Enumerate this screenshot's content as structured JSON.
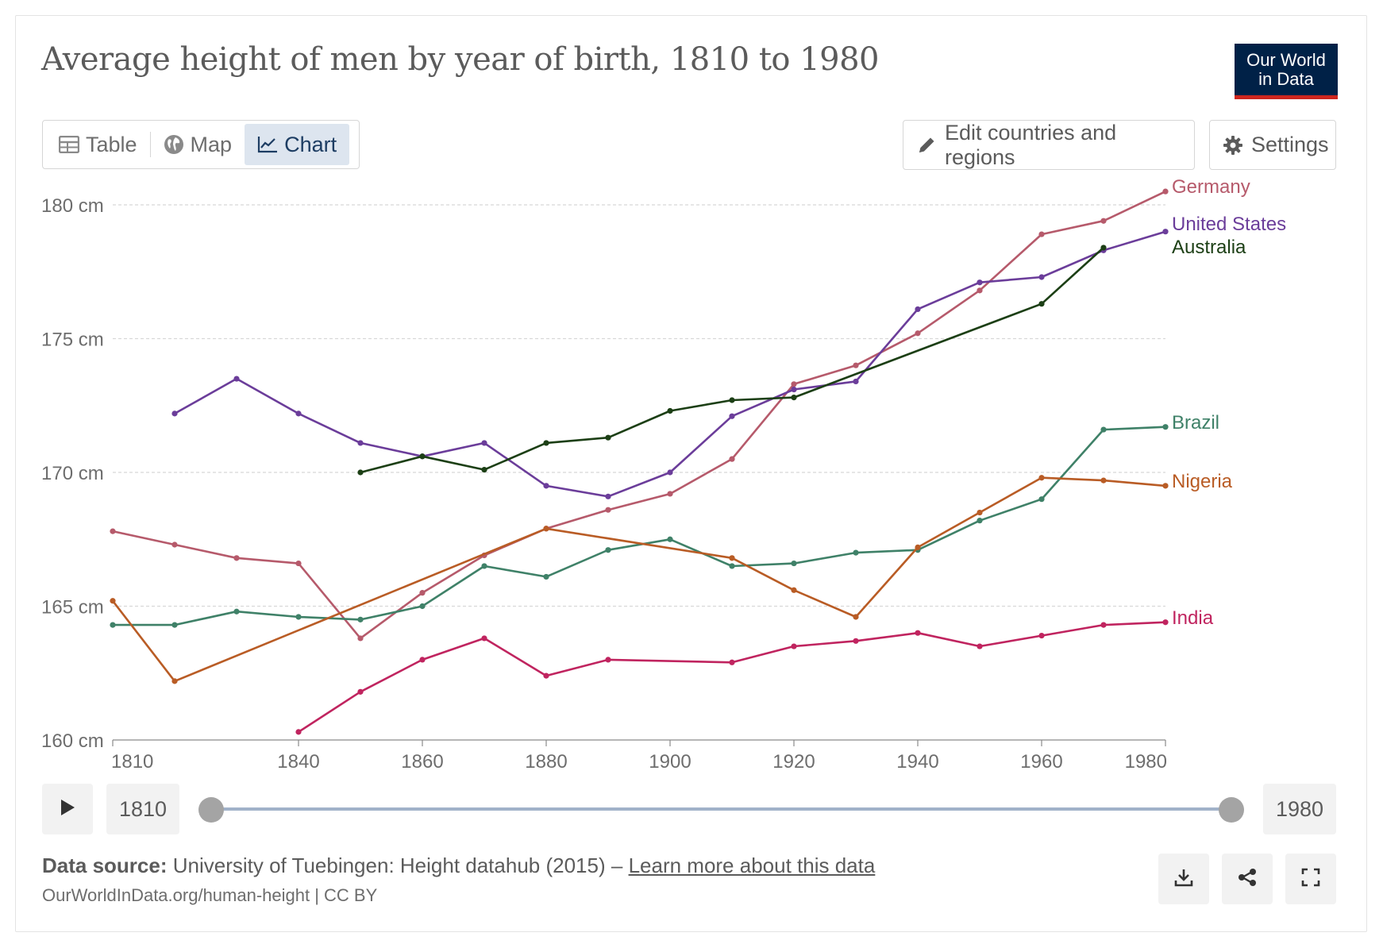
{
  "title": "Average height of men by year of birth, 1810 to 1980",
  "logo": {
    "line1": "Our World",
    "line2": "in Data"
  },
  "tabs": [
    {
      "label": "Table",
      "icon": "table-icon",
      "active": false
    },
    {
      "label": "Map",
      "icon": "globe-icon",
      "active": false
    },
    {
      "label": "Chart",
      "icon": "line-chart-icon",
      "active": true
    }
  ],
  "controls": {
    "edit_label": "Edit countries and regions",
    "settings_label": "Settings"
  },
  "timeline": {
    "start": "1810",
    "end": "1980"
  },
  "footer": {
    "source_label": "Data source:",
    "source_text": "University of Tuebingen: Height datahub (2015) –",
    "learn_more": "Learn more about this data",
    "url": "OurWorldInData.org/human-height | CC BY"
  },
  "colors": {
    "Germany": "#b65a6b",
    "United States": "#6b3d9a",
    "Australia": "#1c3f15",
    "Brazil": "#3f8168",
    "Nigeria": "#b95c25",
    "India": "#c0245f",
    "grid": "#d8d8d8",
    "axis_text": "#6d6d6d"
  },
  "chart_data": {
    "type": "line",
    "xlim": [
      1810,
      1980
    ],
    "ylim": [
      160,
      180
    ],
    "x_ticks": [
      "1810",
      "1840",
      "1860",
      "1880",
      "1900",
      "1920",
      "1940",
      "1960",
      "1980"
    ],
    "y_ticks": [
      "160 cm",
      "165 cm",
      "170 cm",
      "175 cm",
      "180 cm"
    ],
    "grid": "horizontal dashed",
    "legend": "line-end labels",
    "series": [
      {
        "name": "Germany",
        "points": [
          [
            1810,
            167.8
          ],
          [
            1820,
            167.3
          ],
          [
            1830,
            166.8
          ],
          [
            1840,
            166.6
          ],
          [
            1850,
            163.8
          ],
          [
            1860,
            165.5
          ],
          [
            1870,
            166.9
          ],
          [
            1880,
            167.9
          ],
          [
            1890,
            168.6
          ],
          [
            1900,
            169.2
          ],
          [
            1910,
            170.5
          ],
          [
            1920,
            173.3
          ],
          [
            1930,
            174.0
          ],
          [
            1940,
            175.2
          ],
          [
            1950,
            176.8
          ],
          [
            1960,
            178.9
          ],
          [
            1970,
            179.4
          ],
          [
            1980,
            180.5
          ]
        ]
      },
      {
        "name": "United States",
        "points": [
          [
            1820,
            172.2
          ],
          [
            1830,
            173.5
          ],
          [
            1840,
            172.2
          ],
          [
            1850,
            171.1
          ],
          [
            1860,
            170.6
          ],
          [
            1870,
            171.1
          ],
          [
            1880,
            169.5
          ],
          [
            1890,
            169.1
          ],
          [
            1900,
            170.0
          ],
          [
            1910,
            172.1
          ],
          [
            1920,
            173.1
          ],
          [
            1930,
            173.4
          ],
          [
            1940,
            176.1
          ],
          [
            1950,
            177.1
          ],
          [
            1960,
            177.3
          ],
          [
            1970,
            178.3
          ],
          [
            1980,
            179.0
          ]
        ]
      },
      {
        "name": "Australia",
        "points": [
          [
            1850,
            170.0
          ],
          [
            1860,
            170.6
          ],
          [
            1870,
            170.1
          ],
          [
            1880,
            171.1
          ],
          [
            1890,
            171.3
          ],
          [
            1900,
            172.3
          ],
          [
            1910,
            172.7
          ],
          [
            1920,
            172.8
          ],
          [
            1960,
            176.3
          ],
          [
            1970,
            178.4
          ]
        ]
      },
      {
        "name": "Brazil",
        "points": [
          [
            1810,
            164.3
          ],
          [
            1820,
            164.3
          ],
          [
            1830,
            164.8
          ],
          [
            1840,
            164.6
          ],
          [
            1850,
            164.5
          ],
          [
            1860,
            165.0
          ],
          [
            1870,
            166.5
          ],
          [
            1880,
            166.1
          ],
          [
            1890,
            167.1
          ],
          [
            1900,
            167.5
          ],
          [
            1910,
            166.5
          ],
          [
            1920,
            166.6
          ],
          [
            1930,
            167.0
          ],
          [
            1940,
            167.1
          ],
          [
            1950,
            168.2
          ],
          [
            1960,
            169.0
          ],
          [
            1970,
            171.6
          ],
          [
            1980,
            171.7
          ]
        ]
      },
      {
        "name": "Nigeria",
        "points": [
          [
            1810,
            165.2
          ],
          [
            1820,
            162.2
          ],
          [
            1880,
            167.9
          ],
          [
            1910,
            166.8
          ],
          [
            1920,
            165.6
          ],
          [
            1930,
            164.6
          ],
          [
            1940,
            167.2
          ],
          [
            1950,
            168.5
          ],
          [
            1960,
            169.8
          ],
          [
            1970,
            169.7
          ],
          [
            1980,
            169.5
          ]
        ]
      },
      {
        "name": "India",
        "points": [
          [
            1840,
            160.3
          ],
          [
            1850,
            161.8
          ],
          [
            1860,
            163.0
          ],
          [
            1870,
            163.8
          ],
          [
            1880,
            162.4
          ],
          [
            1890,
            163.0
          ],
          [
            1910,
            162.9
          ],
          [
            1920,
            163.5
          ],
          [
            1930,
            163.7
          ],
          [
            1940,
            164.0
          ],
          [
            1950,
            163.5
          ],
          [
            1960,
            163.9
          ],
          [
            1970,
            164.3
          ],
          [
            1980,
            164.4
          ]
        ]
      }
    ]
  }
}
